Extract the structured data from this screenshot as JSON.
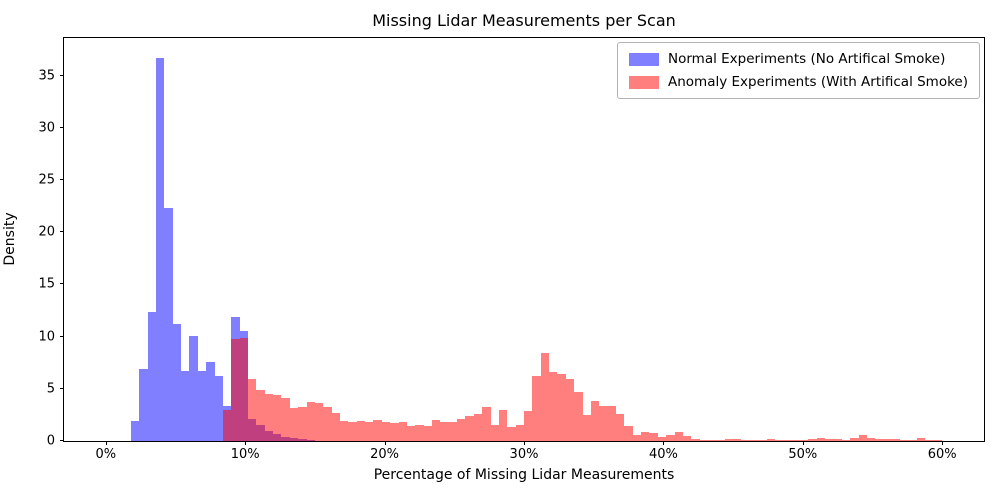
{
  "figure": {
    "title": "Missing Lidar Measurements per Scan",
    "xlabel": "Percentage of Missing Lidar Measurements",
    "ylabel": "Density"
  },
  "legend": {
    "items": [
      {
        "label": "Normal Experiments (No Artifical Smoke)",
        "color": "#7f7fff"
      },
      {
        "label": "Anomaly Experiments (With Artifical Smoke)",
        "color": "#ff7f7f"
      }
    ]
  },
  "chart_data": {
    "type": "bar",
    "subtype": "overlapping-histogram",
    "title": "Missing Lidar Measurements per Scan",
    "xlabel": "Percentage of Missing Lidar Measurements",
    "ylabel": "Density",
    "xlim": [
      -3,
      63
    ],
    "ylim": [
      0,
      38.6
    ],
    "grid": false,
    "legend_position": "upper right",
    "x_ticks": [
      0,
      10,
      20,
      30,
      40,
      50,
      60
    ],
    "x_tick_labels": [
      "0%",
      "10%",
      "20%",
      "30%",
      "40%",
      "50%",
      "60%"
    ],
    "y_ticks": [
      0,
      5,
      10,
      15,
      20,
      25,
      30,
      35
    ],
    "bin_width": 0.6,
    "series": [
      {
        "name": "Normal Experiments (No Artifical Smoke)",
        "color": "rgba(0,0,255,0.5)",
        "bin_start": 1.8,
        "heights": [
          1.9,
          6.9,
          12.4,
          36.7,
          22.3,
          11.2,
          6.7,
          10.1,
          6.7,
          7.6,
          6.2,
          3.4,
          11.9,
          10.5,
          2.1,
          1.5,
          0.95,
          0.65,
          0.4,
          0.25,
          0.15,
          0.1
        ]
      },
      {
        "name": "Anomaly Experiments (With Artifical Smoke)",
        "color": "rgba(255,0,0,0.5)",
        "bin_start": 8.4,
        "heights": [
          3.0,
          9.8,
          9.9,
          5.9,
          4.9,
          4.5,
          4.4,
          4.1,
          3.2,
          3.3,
          3.7,
          3.6,
          3.3,
          2.7,
          1.9,
          1.8,
          1.9,
          1.8,
          2.0,
          1.8,
          1.7,
          1.8,
          1.45,
          1.5,
          1.4,
          2.0,
          1.8,
          1.8,
          2.1,
          2.4,
          2.6,
          3.3,
          1.5,
          3.0,
          1.3,
          1.5,
          2.9,
          6.2,
          8.4,
          6.6,
          6.4,
          5.9,
          4.7,
          2.5,
          3.8,
          3.4,
          3.4,
          2.6,
          1.4,
          0.6,
          0.9,
          0.75,
          0.4,
          0.6,
          0.85,
          0.5,
          0.2,
          0.1,
          0.05,
          0.05,
          0.2,
          0.15,
          0.05,
          0.05,
          0.05,
          0.15,
          0.1,
          0.05,
          0.05,
          0.1,
          0.2,
          0.25,
          0.2,
          0.15,
          0.1,
          0.3,
          0.55,
          0.3,
          0.2,
          0.15,
          0.2,
          0.1,
          0.05,
          0.25,
          0.1,
          0.05
        ]
      }
    ]
  }
}
